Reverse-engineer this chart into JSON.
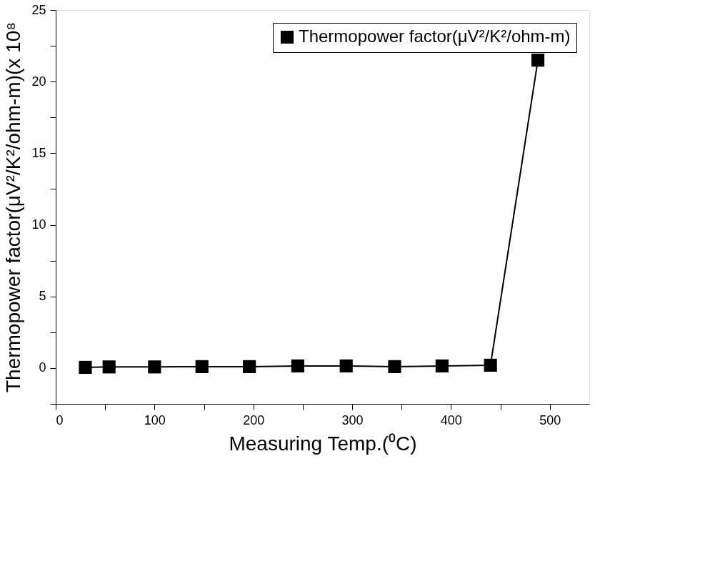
{
  "chart_data": {
    "type": "line",
    "xlabel": "Measuring Temp.(⁰C)",
    "ylabel": "Thermopower factor(μV²/K²/ohm-m)(x 10⁸",
    "x": [
      30,
      54,
      100,
      148,
      196,
      245,
      294,
      343,
      391,
      440,
      488
    ],
    "series": [
      {
        "name": "Thermopower factor(μV²/K²/ohm-m)",
        "color": "#000000",
        "values": [
          0.05,
          0.08,
          0.08,
          0.1,
          0.1,
          0.15,
          0.15,
          0.1,
          0.15,
          0.2,
          21.5
        ]
      }
    ],
    "xlim": [
      0,
      540
    ],
    "ylim": [
      -2.5,
      25
    ],
    "xticks": [
      0,
      {
        "value": 50,
        "label": null
      },
      100,
      {
        "value": 150,
        "label": null
      },
      200,
      {
        "value": 250,
        "label": null
      },
      300,
      {
        "value": 350,
        "label": null
      },
      400,
      {
        "value": 450,
        "label": null
      },
      500
    ],
    "yticks": [
      {
        "value": -2.5,
        "label": null
      },
      0,
      {
        "value": 2.5,
        "label": null
      },
      5,
      {
        "value": 7.5,
        "label": null
      },
      10,
      {
        "value": 12.5,
        "label": null
      },
      15,
      {
        "value": 17.5,
        "label": null
      },
      20,
      {
        "value": 22.5,
        "label": null
      },
      25
    ],
    "marker": "square",
    "line_style": "solid",
    "grid": false,
    "legend": "top right"
  }
}
